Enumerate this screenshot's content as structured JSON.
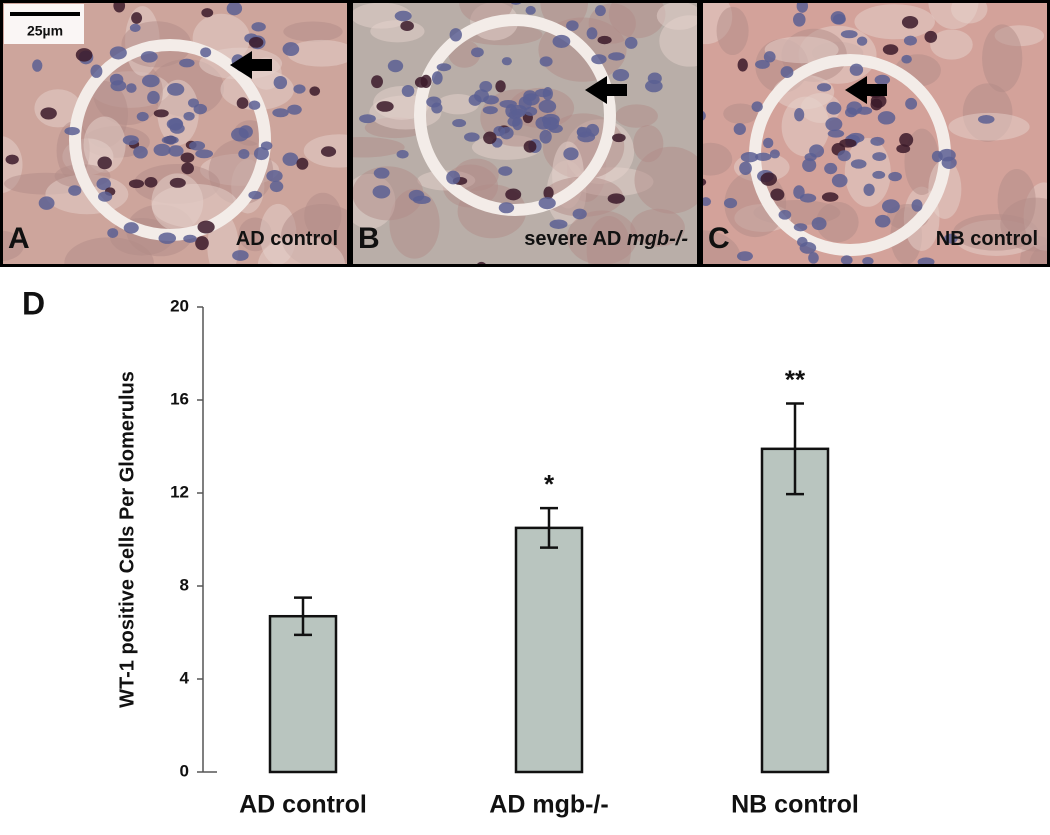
{
  "panels": [
    {
      "letter": "A",
      "label": "AD control",
      "tone": "#cda59c"
    },
    {
      "letter": "B",
      "label": "severe AD",
      "label_italic": "mgb-/-",
      "tone": "#b9aea8"
    },
    {
      "letter": "C",
      "label": "NB control",
      "tone": "#d3a29a"
    }
  ],
  "scale_bar": "25µm",
  "chart_data": {
    "type": "bar",
    "panel_letter": "D",
    "y_label": "WT-1 positive Cells Per Glomerulus",
    "categories": [
      "AD control",
      "AD mgb-/-",
      "NB control"
    ],
    "values": [
      6.7,
      10.5,
      13.9
    ],
    "errors": [
      0.8,
      0.85,
      1.95
    ],
    "significance": [
      null,
      "*",
      "**"
    ],
    "color": "#b9c5bf",
    "ylim": [
      0,
      20
    ],
    "yticks": [
      0,
      4,
      8,
      12,
      16,
      20
    ]
  }
}
